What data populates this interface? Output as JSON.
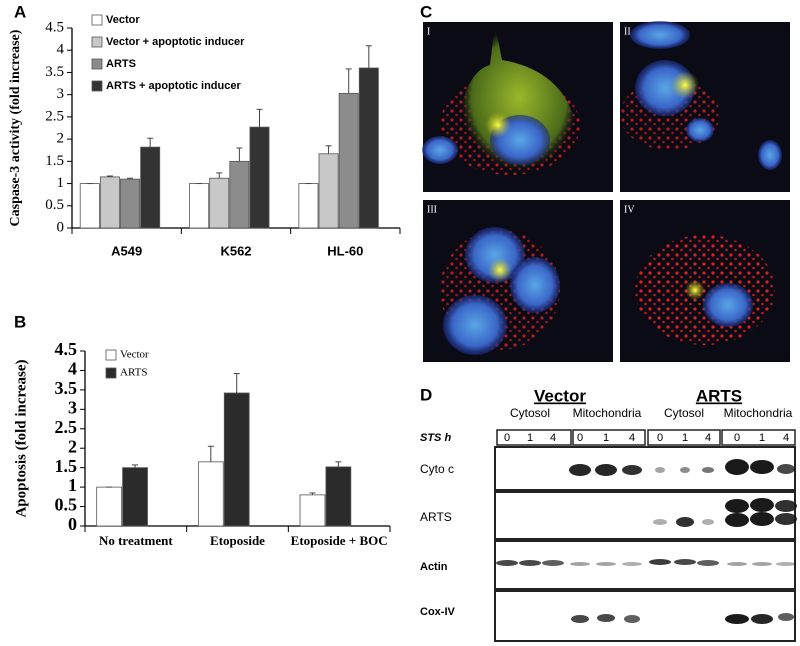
{
  "panel_labels": [
    "A",
    "B",
    "C",
    "D"
  ],
  "chart_data": [
    {
      "type": "bar",
      "ylabel": "Caspase-3 activity (fold increase)",
      "categories": [
        "A549",
        "K562",
        "HL-60"
      ],
      "series": [
        {
          "name": "Vector",
          "color": "#ffffff",
          "values": [
            1,
            1,
            1
          ],
          "errors": [
            0,
            0,
            0
          ]
        },
        {
          "name": "Vector + apoptotic inducer",
          "color": "#c8c8c8",
          "values": [
            1.15,
            1.12,
            1.67
          ],
          "errors": [
            0.02,
            0.12,
            0.18
          ]
        },
        {
          "name": "ARTS",
          "color": "#8c8c8c",
          "values": [
            1.1,
            1.5,
            3.03
          ],
          "errors": [
            0.02,
            0.3,
            0.55
          ]
        },
        {
          "name": "ARTS + apoptotic inducer",
          "color": "#333333",
          "values": [
            1.82,
            2.27,
            3.6
          ],
          "errors": [
            0.2,
            0.4,
            0.5
          ]
        }
      ],
      "ylim": [
        0,
        4.5
      ],
      "yticks": [
        0,
        0.5,
        1,
        1.5,
        2,
        2.5,
        3,
        3.5,
        4,
        4.5
      ]
    },
    {
      "type": "bar",
      "ylabel": "Apoptosis (fold increase)",
      "categories": [
        "No treatment",
        "Etoposide",
        "Etoposide + BOC"
      ],
      "series": [
        {
          "name": "Vector",
          "color": "#ffffff",
          "values": [
            1,
            1.65,
            0.8
          ],
          "errors": [
            0,
            0.4,
            0.05
          ]
        },
        {
          "name": "ARTS",
          "color": "#2b2b2b",
          "values": [
            1.5,
            3.42,
            1.52
          ],
          "errors": [
            0.07,
            0.5,
            0.13
          ]
        }
      ],
      "ylim": [
        0,
        4.5
      ],
      "yticks": [
        0,
        0.5,
        1,
        1.5,
        2,
        2.5,
        3,
        3.5,
        4,
        4.5
      ]
    }
  ],
  "micrograph_labels": [
    "I",
    "II",
    "III",
    "IV"
  ],
  "blot": {
    "groups": [
      "Vector",
      "ARTS"
    ],
    "fractions": [
      "Cytosol",
      "Mitochondria",
      "Cytosol",
      "Mitochondria"
    ],
    "time_label": "STS h",
    "timepoints": [
      0,
      1,
      4
    ],
    "rows": [
      "Cyto c",
      "ARTS",
      "Actin",
      "Cox-IV"
    ]
  }
}
